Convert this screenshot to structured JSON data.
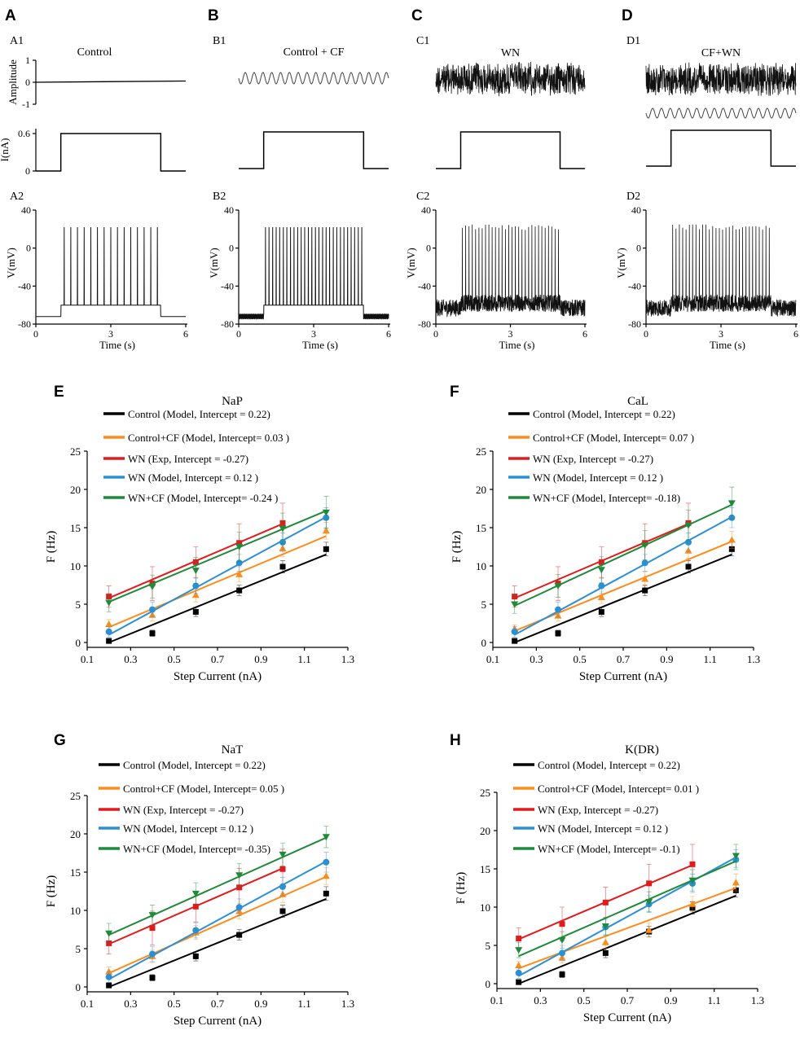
{
  "colors": {
    "Control": "#000000",
    "Control+CF": "#ff8c1a",
    "WN Exp": "#e31a1c",
    "WN Model": "#2b8fd6",
    "WN+CF": "#1f8a3a"
  },
  "top_panels": [
    {
      "letter": "A",
      "sub1": "A1",
      "sub2": "A2",
      "title": "Control",
      "kind": "control"
    },
    {
      "letter": "B",
      "sub1": "B1",
      "sub2": "B2",
      "title": "Control + CF",
      "kind": "cf"
    },
    {
      "letter": "C",
      "sub1": "C1",
      "sub2": "C2",
      "title": "WN",
      "kind": "wn"
    },
    {
      "letter": "D",
      "sub1": "D1",
      "sub2": "D2",
      "title": "CF+WN",
      "kind": "cfwn"
    }
  ],
  "top_axes": {
    "amplitude_label": "Amplitude",
    "amplitude_ticks": [
      "1",
      "0",
      "-1"
    ],
    "current_label": "I(nA)",
    "current_ticks": [
      "0.6",
      "0"
    ],
    "voltage_label": "V(mV)",
    "voltage_ticks": [
      "40",
      "0",
      "-40",
      "-80"
    ],
    "time_label": "Time (s)",
    "time_ticks": [
      "0",
      "3",
      "6"
    ]
  },
  "chart_data": [
    {
      "panel": "E",
      "type": "scatter",
      "title": "NaP",
      "xlabel": "Step Current (nA)",
      "ylabel": "F (Hz)",
      "xlim": [
        0.1,
        1.3
      ],
      "ylim": [
        0,
        25
      ],
      "xticks": [
        "0.1",
        "0.3",
        "0.5",
        "0.7",
        "0.9",
        "1.1",
        "1.3"
      ],
      "yticks": [
        "0",
        "5",
        "10",
        "15",
        "20",
        "25"
      ],
      "series": [
        {
          "name": "Control",
          "legend": "Control (Model, Intercept = 0.22)",
          "marker": "square",
          "x": [
            0.2,
            0.4,
            0.6,
            0.8,
            1.0,
            1.2
          ],
          "y": [
            0.2,
            1.2,
            4.0,
            6.8,
            9.9,
            12.2
          ],
          "err": [
            0.3,
            0.4,
            0.6,
            0.7,
            0.8,
            0.9
          ],
          "fit": [
            0.0,
            11.5
          ]
        },
        {
          "name": "Control+CF",
          "legend": "Control+CF (Model, Intercept= 0.03 )",
          "marker": "triangle",
          "x": [
            0.2,
            0.4,
            0.6,
            0.8,
            1.0,
            1.2
          ],
          "y": [
            2.4,
            3.6,
            6.2,
            8.9,
            12.3,
            14.6
          ],
          "err": [
            0.6,
            0.8,
            0.9,
            1.0,
            1.1,
            1.1
          ],
          "fit": [
            2.0,
            13.9
          ]
        },
        {
          "name": "WN Exp",
          "legend": "WN (Exp, Intercept = -0.27)",
          "marker": "square",
          "x": [
            0.2,
            0.4,
            0.6,
            0.8,
            1.0
          ],
          "y": [
            6.0,
            7.7,
            10.5,
            13.0,
            15.6
          ],
          "err": [
            1.4,
            2.2,
            2.0,
            2.5,
            2.6
          ],
          "fit": [
            5.8,
            15.5
          ]
        },
        {
          "name": "WN Model",
          "legend": "WN (Model, Intercept = 0.12 )",
          "marker": "circle",
          "x": [
            0.2,
            0.4,
            0.6,
            0.8,
            1.0,
            1.2
          ],
          "y": [
            1.4,
            4.3,
            7.4,
            10.4,
            13.1,
            16.3
          ],
          "err": [
            0.7,
            1.0,
            1.0,
            1.1,
            1.2,
            1.3
          ],
          "fit": [
            1.0,
            16.4
          ]
        },
        {
          "name": "WN+CF",
          "legend": "WN+CF (Model, Intercept= -0.24 )",
          "marker": "triangle-down",
          "x": [
            0.2,
            0.4,
            0.6,
            0.8,
            1.0,
            1.2
          ],
          "y": [
            5.2,
            7.3,
            9.4,
            12.5,
            14.9,
            17.0
          ],
          "err": [
            1.2,
            1.5,
            1.7,
            1.9,
            2.0,
            2.1
          ],
          "fit": [
            5.3,
            17.2
          ]
        }
      ]
    },
    {
      "panel": "F",
      "type": "scatter",
      "title": "CaL",
      "xlabel": "Step Current (nA)",
      "ylabel": "F (Hz)",
      "xlim": [
        0.1,
        1.3
      ],
      "ylim": [
        0,
        25
      ],
      "xticks": [
        "0.1",
        "0.3",
        "0.5",
        "0.7",
        "0.9",
        "1.1",
        "1.3"
      ],
      "yticks": [
        "0",
        "5",
        "10",
        "15",
        "20",
        "25"
      ],
      "series": [
        {
          "name": "Control",
          "legend": "Control (Model, Intercept = 0.22)",
          "marker": "square",
          "x": [
            0.2,
            0.4,
            0.6,
            0.8,
            1.0,
            1.2
          ],
          "y": [
            0.2,
            1.2,
            4.0,
            6.8,
            9.9,
            12.2
          ],
          "err": [
            0.3,
            0.4,
            0.6,
            0.7,
            0.8,
            0.9
          ],
          "fit": [
            0.0,
            11.5
          ]
        },
        {
          "name": "Control+CF",
          "legend": "Control+CF (Model, Intercept= 0.07 )",
          "marker": "triangle",
          "x": [
            0.2,
            0.4,
            0.6,
            0.8,
            1.0,
            1.2
          ],
          "y": [
            1.8,
            3.5,
            5.9,
            8.3,
            12.0,
            13.4
          ],
          "err": [
            0.5,
            0.7,
            0.8,
            0.9,
            1.0,
            1.1
          ],
          "fit": [
            1.5,
            13.2
          ]
        },
        {
          "name": "WN Exp",
          "legend": "WN (Exp, Intercept = -0.27)",
          "marker": "square",
          "x": [
            0.2,
            0.4,
            0.6,
            0.8,
            1.0
          ],
          "y": [
            6.0,
            7.7,
            10.5,
            13.0,
            15.6
          ],
          "err": [
            1.4,
            2.2,
            2.0,
            2.5,
            2.6
          ],
          "fit": [
            5.8,
            15.5
          ]
        },
        {
          "name": "WN Model",
          "legend": "WN (Model, Intercept = 0.12 )",
          "marker": "circle",
          "x": [
            0.2,
            0.4,
            0.6,
            0.8,
            1.0,
            1.2
          ],
          "y": [
            1.4,
            4.3,
            7.4,
            10.4,
            13.1,
            16.3
          ],
          "err": [
            0.7,
            1.0,
            1.0,
            1.1,
            1.2,
            1.3
          ],
          "fit": [
            1.0,
            16.4
          ]
        },
        {
          "name": "WN+CF",
          "legend": "WN+CF (Model, Intercept= -0.18)",
          "marker": "triangle-down",
          "x": [
            0.2,
            0.4,
            0.6,
            0.8,
            1.0,
            1.2
          ],
          "y": [
            5.0,
            7.4,
            9.5,
            12.7,
            15.3,
            18.2
          ],
          "err": [
            1.2,
            1.5,
            1.7,
            1.9,
            2.0,
            2.1
          ],
          "fit": [
            4.8,
            18.0
          ]
        }
      ]
    },
    {
      "panel": "G",
      "type": "scatter",
      "title": "NaT",
      "xlabel": "Step Current (nA)",
      "ylabel": "F (Hz)",
      "xlim": [
        0.1,
        1.3
      ],
      "ylim": [
        0,
        25
      ],
      "xticks": [
        "0.1",
        "0.3",
        "0.5",
        "0.7",
        "0.9",
        "1.1",
        "1.3"
      ],
      "yticks": [
        "0",
        "5",
        "10",
        "15",
        "20",
        "25"
      ],
      "series": [
        {
          "name": "Control",
          "legend": "Control (Model, Intercept = 0.22)",
          "marker": "square",
          "x": [
            0.2,
            0.4,
            0.6,
            0.8,
            1.0,
            1.2
          ],
          "y": [
            0.2,
            1.2,
            4.0,
            6.8,
            9.9,
            12.2
          ],
          "err": [
            0.3,
            0.4,
            0.6,
            0.7,
            0.8,
            0.9
          ],
          "fit": [
            0.0,
            11.5
          ]
        },
        {
          "name": "Control+CF",
          "legend": "Control+CF (Model, Intercept= 0.05 )",
          "marker": "triangle",
          "x": [
            0.2,
            0.4,
            0.6,
            0.8,
            1.0,
            1.2
          ],
          "y": [
            2.0,
            4.0,
            7.1,
            9.9,
            12.1,
            14.5
          ],
          "err": [
            0.6,
            0.8,
            0.9,
            1.0,
            1.1,
            1.1
          ],
          "fit": [
            1.8,
            14.4
          ]
        },
        {
          "name": "WN Exp",
          "legend": "WN (Exp, Intercept = -0.27)",
          "marker": "square",
          "x": [
            0.2,
            0.4,
            0.6,
            0.8,
            1.0
          ],
          "y": [
            5.7,
            7.7,
            10.5,
            13.0,
            15.4
          ],
          "err": [
            1.4,
            2.2,
            2.0,
            2.5,
            2.6
          ],
          "fit": [
            5.6,
            15.5
          ]
        },
        {
          "name": "WN Model",
          "legend": "WN (Model, Intercept = 0.12 )",
          "marker": "circle",
          "x": [
            0.2,
            0.4,
            0.6,
            0.8,
            1.0,
            1.2
          ],
          "y": [
            1.3,
            4.3,
            7.4,
            10.4,
            13.1,
            16.3
          ],
          "err": [
            0.7,
            1.0,
            1.0,
            1.1,
            1.2,
            1.3
          ],
          "fit": [
            1.0,
            16.4
          ]
        },
        {
          "name": "WN+CF",
          "legend": "WN+CF (Model, Intercept= -0.35)",
          "marker": "triangle-down",
          "x": [
            0.2,
            0.4,
            0.6,
            0.8,
            1.0,
            1.2
          ],
          "y": [
            7.0,
            9.4,
            12.2,
            14.6,
            17.3,
            19.6
          ],
          "err": [
            1.3,
            1.3,
            1.4,
            1.5,
            1.5,
            1.4
          ],
          "fit": [
            6.8,
            19.5
          ]
        }
      ]
    },
    {
      "panel": "H",
      "type": "scatter",
      "title": "K(DR)",
      "xlabel": "Step Current (nA)",
      "ylabel": "F (Hz)",
      "xlim": [
        0.1,
        1.3
      ],
      "ylim": [
        0,
        25
      ],
      "xticks": [
        "0.1",
        "0.3",
        "0.5",
        "0.7",
        "0.9",
        "1.1",
        "1.3"
      ],
      "yticks": [
        "0",
        "5",
        "10",
        "15",
        "20",
        "25"
      ],
      "series": [
        {
          "name": "Control",
          "legend": "Control (Model, Intercept = 0.22)",
          "marker": "square",
          "x": [
            0.2,
            0.4,
            0.6,
            0.8,
            1.0,
            1.2
          ],
          "y": [
            0.2,
            1.2,
            4.0,
            6.8,
            9.9,
            12.2
          ],
          "err": [
            0.3,
            0.4,
            0.6,
            0.7,
            0.8,
            0.9
          ],
          "fit": [
            0.0,
            11.5
          ]
        },
        {
          "name": "Control+CF",
          "legend": "Control+CF (Model, Intercept= 0.01 )",
          "marker": "triangle",
          "x": [
            0.2,
            0.4,
            0.6,
            0.8,
            1.0,
            1.2
          ],
          "y": [
            2.4,
            3.4,
            5.4,
            7.0,
            10.4,
            13.2
          ],
          "err": [
            0.5,
            0.7,
            0.8,
            0.9,
            1.0,
            1.1
          ],
          "fit": [
            2.0,
            12.5
          ]
        },
        {
          "name": "WN Exp",
          "legend": "WN (Exp, Intercept = -0.27)",
          "marker": "square",
          "x": [
            0.2,
            0.4,
            0.6,
            0.8,
            1.0
          ],
          "y": [
            5.9,
            7.8,
            10.6,
            13.1,
            15.6
          ],
          "err": [
            1.4,
            2.2,
            2.0,
            2.5,
            2.6
          ],
          "fit": [
            5.8,
            15.5
          ]
        },
        {
          "name": "WN Model",
          "legend": "WN (Model, Intercept = 0.12 )",
          "marker": "circle",
          "x": [
            0.2,
            0.4,
            0.6,
            0.8,
            1.0,
            1.2
          ],
          "y": [
            1.4,
            4.0,
            7.4,
            10.4,
            13.1,
            16.2
          ],
          "err": [
            0.7,
            1.0,
            1.0,
            1.1,
            1.2,
            1.3
          ],
          "fit": [
            1.0,
            16.5
          ]
        },
        {
          "name": "WN+CF",
          "legend": "WN+CF (Model, Intercept= -0.1)",
          "marker": "triangle-down",
          "x": [
            0.2,
            0.4,
            0.6,
            0.8,
            1.0,
            1.2
          ],
          "y": [
            4.4,
            5.7,
            7.5,
            10.7,
            13.5,
            16.7
          ],
          "err": [
            1.0,
            1.1,
            1.2,
            1.3,
            1.4,
            1.5
          ],
          "fit": [
            3.6,
            16.0
          ]
        }
      ]
    }
  ]
}
